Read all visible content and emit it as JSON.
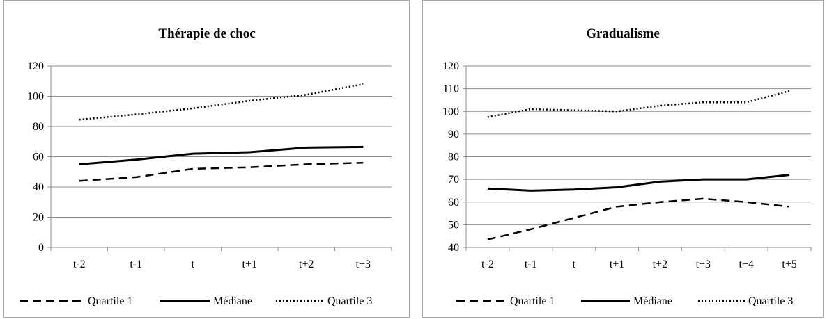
{
  "chart_data": [
    {
      "type": "line",
      "title": "Thérapie de choc",
      "categories": [
        "t-2",
        "t-1",
        "t",
        "t+1",
        "t+2",
        "t+3"
      ],
      "ylim": [
        0,
        120
      ],
      "yticks": [
        0,
        20,
        40,
        60,
        80,
        100,
        120
      ],
      "grid": true,
      "legend_position": "bottom",
      "series": [
        {
          "name": "Quartile 1",
          "style": "dashed",
          "values": [
            44,
            46.5,
            52,
            53,
            55,
            56
          ]
        },
        {
          "name": "Médiane",
          "style": "solid",
          "values": [
            55,
            58,
            62,
            63,
            66,
            66.5
          ]
        },
        {
          "name": "Quartile 3",
          "style": "dotted",
          "values": [
            84.5,
            88,
            92,
            97,
            101,
            108
          ]
        }
      ]
    },
    {
      "type": "line",
      "title": "Gradualisme",
      "categories": [
        "t-2",
        "t-1",
        "t",
        "t+1",
        "t+2",
        "t+3",
        "t+4",
        "t+5"
      ],
      "ylim": [
        40,
        120
      ],
      "yticks": [
        40,
        50,
        60,
        70,
        80,
        90,
        100,
        110,
        120
      ],
      "grid": true,
      "legend_position": "bottom",
      "series": [
        {
          "name": "Quartile 1",
          "style": "dashed",
          "values": [
            43.5,
            48,
            53,
            58,
            60,
            61.5,
            60,
            58
          ]
        },
        {
          "name": "Médiane",
          "style": "solid",
          "values": [
            66,
            65,
            65.5,
            66.5,
            69,
            70,
            70,
            72
          ]
        },
        {
          "name": "Quartile 3",
          "style": "dotted",
          "values": [
            97.5,
            101,
            100.5,
            100,
            102.5,
            104,
            104,
            109
          ]
        }
      ]
    }
  ],
  "colors": {
    "line": "#000000",
    "grid": "#8c8c8c",
    "frame": "#a6a6a6"
  }
}
